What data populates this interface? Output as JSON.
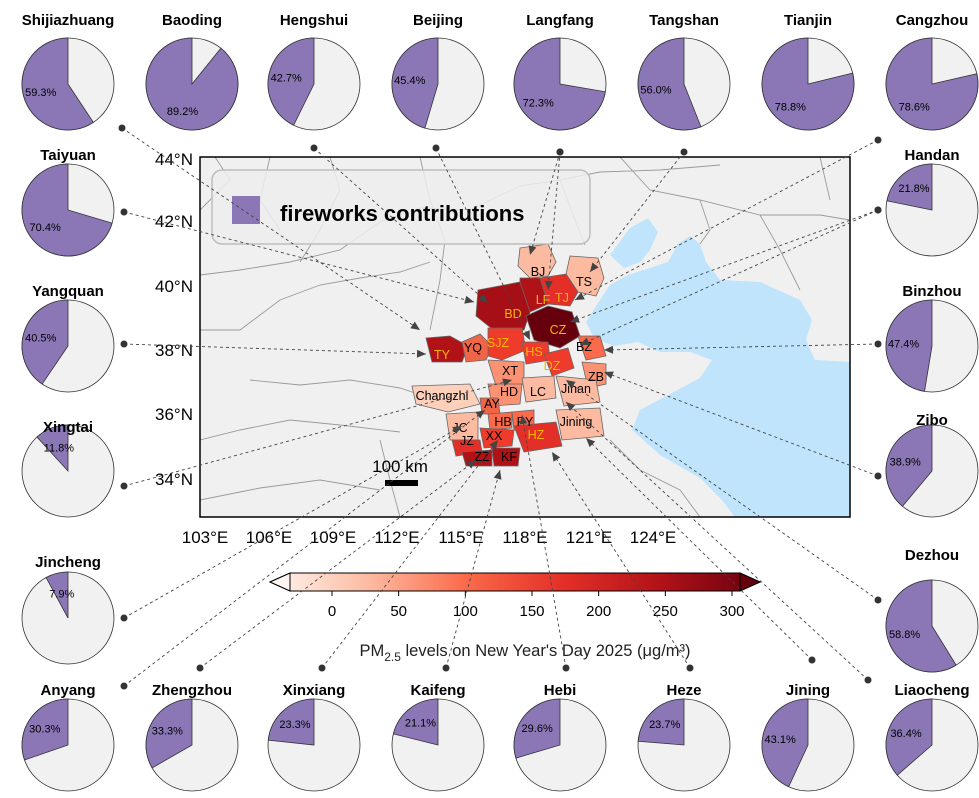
{
  "legend": {
    "label": "fireworks contributions",
    "color": "#8b76b6"
  },
  "colors": {
    "pie_fill": "#8b76b6",
    "pie_bg": "#f1f1f1",
    "sea": "#bfe4fb",
    "land": "#f0f0f0"
  },
  "pies": [
    {
      "name": "Shijiazhuang",
      "pct": 59.3,
      "label": "59.3%"
    },
    {
      "name": "Baoding",
      "pct": 89.2,
      "label": "89.2%"
    },
    {
      "name": "Hengshui",
      "pct": 42.7,
      "label": "42.7%"
    },
    {
      "name": "Beijing",
      "pct": 45.4,
      "label": "45.4%"
    },
    {
      "name": "Langfang",
      "pct": 72.3,
      "label": "72.3%"
    },
    {
      "name": "Tangshan",
      "pct": 56.0,
      "label": "56.0%"
    },
    {
      "name": "Tianjin",
      "pct": 78.8,
      "label": "78.8%"
    },
    {
      "name": "Cangzhou",
      "pct": 78.6,
      "label": "78.6%"
    },
    {
      "name": "Taiyuan",
      "pct": 70.4,
      "label": "70.4%"
    },
    {
      "name": "Handan",
      "pct": 21.8,
      "label": "21.8%"
    },
    {
      "name": "Yangquan",
      "pct": 40.5,
      "label": "40.5%"
    },
    {
      "name": "Binzhou",
      "pct": 47.4,
      "label": "47.4%"
    },
    {
      "name": "Xingtai",
      "pct": 11.8,
      "label": "11.8%"
    },
    {
      "name": "Zibo",
      "pct": 38.9,
      "label": "38.9%"
    },
    {
      "name": "Jincheng",
      "pct": 7.9,
      "label": "7.9%"
    },
    {
      "name": "Dezhou",
      "pct": 58.8,
      "label": "58.8%"
    },
    {
      "name": "Anyang",
      "pct": 30.3,
      "label": "30.3%"
    },
    {
      "name": "Zhengzhou",
      "pct": 33.3,
      "label": "33.3%"
    },
    {
      "name": "Xinxiang",
      "pct": 23.3,
      "label": "23.3%"
    },
    {
      "name": "Kaifeng",
      "pct": 21.1,
      "label": "21.1%"
    },
    {
      "name": "Hebi",
      "pct": 29.6,
      "label": "29.6%"
    },
    {
      "name": "Heze",
      "pct": 23.7,
      "label": "23.7%"
    },
    {
      "name": "Jining",
      "pct": 43.1,
      "label": "43.1%"
    },
    {
      "name": "Liaocheng",
      "pct": 36.4,
      "label": "36.4%"
    }
  ],
  "map": {
    "lat_labels": [
      "44°N",
      "42°N",
      "40°N",
      "38°N",
      "36°N",
      "34°N"
    ],
    "lon_labels": [
      "103°E",
      "106°E",
      "109°E",
      "112°E",
      "115°E",
      "118°E",
      "121°E",
      "124°E"
    ],
    "scalebar": "100 km",
    "cities": [
      {
        "code": "BJ",
        "color": "#000"
      },
      {
        "code": "TS",
        "color": "#000"
      },
      {
        "code": "LF",
        "color": "#f5b800"
      },
      {
        "code": "TJ",
        "color": "#f5b800"
      },
      {
        "code": "BD",
        "color": "#f5b800"
      },
      {
        "code": "CZ",
        "color": "#f5b800"
      },
      {
        "code": "TY",
        "color": "#f5b800"
      },
      {
        "code": "YQ",
        "color": "#000"
      },
      {
        "code": "SJZ",
        "color": "#f5b800"
      },
      {
        "code": "HS",
        "color": "#f5b800"
      },
      {
        "code": "BZ",
        "color": "#000"
      },
      {
        "code": "DZ",
        "color": "#f5b800"
      },
      {
        "code": "XT",
        "color": "#000"
      },
      {
        "code": "ZB",
        "color": "#000"
      },
      {
        "code": "HD",
        "color": "#000"
      },
      {
        "code": "LC",
        "color": "#000"
      },
      {
        "code": "Jinan",
        "color": "#000"
      },
      {
        "code": "Changzhi",
        "color": "#000"
      },
      {
        "code": "AY",
        "color": "#000"
      },
      {
        "code": "HB",
        "color": "#000"
      },
      {
        "code": "PY",
        "color": "#000"
      },
      {
        "code": "JC",
        "color": "#000"
      },
      {
        "code": "XX",
        "color": "#000"
      },
      {
        "code": "HZ",
        "color": "#f5b800"
      },
      {
        "code": "Jining",
        "color": "#000"
      },
      {
        "code": "JZ",
        "color": "#000"
      },
      {
        "code": "ZZ",
        "color": "#000"
      },
      {
        "code": "KF",
        "color": "#000"
      }
    ]
  },
  "colorbar": {
    "ticks": [
      "0",
      "50",
      "100",
      "150",
      "200",
      "250",
      "300"
    ],
    "label_prefix": "PM",
    "label_sub": "2.5",
    "label_suffix": " levels on New Year's Day 2025 (μg/m³)",
    "min": 0,
    "max": 300
  }
}
